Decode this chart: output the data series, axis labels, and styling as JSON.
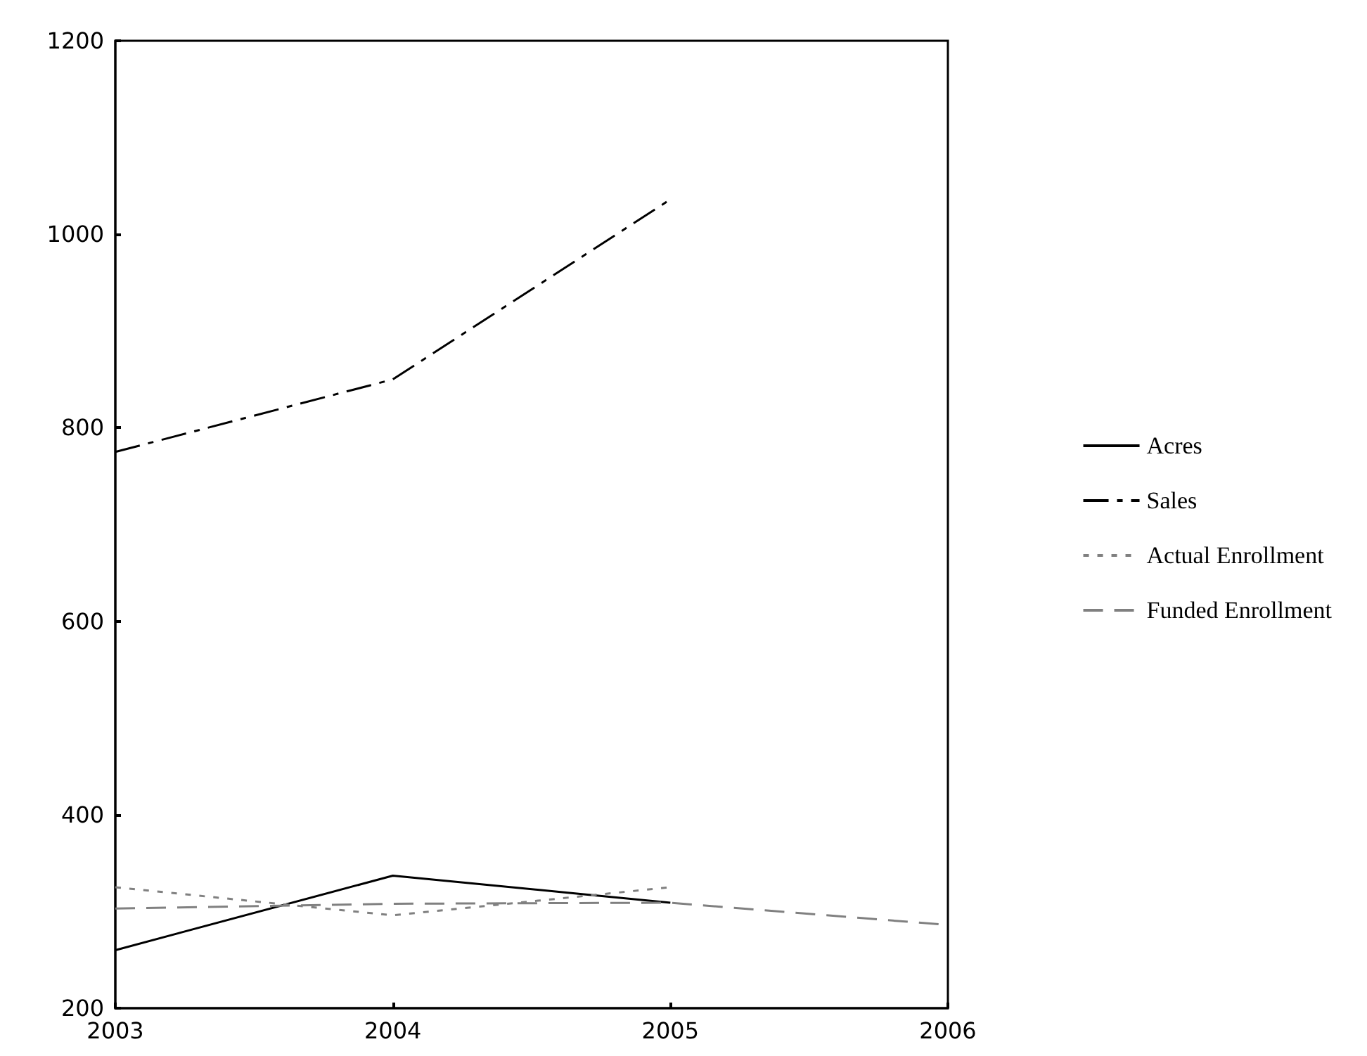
{
  "chart_data": {
    "type": "line",
    "x": [
      2003,
      2004,
      2005,
      2006
    ],
    "xlim": [
      2003,
      2006
    ],
    "xticks": [
      2003,
      2004,
      2005,
      2006
    ],
    "ylim": [
      200,
      1200
    ],
    "yticks": [
      200,
      400,
      600,
      800,
      1000,
      1200
    ],
    "series": [
      {
        "name": "Acres",
        "color": "#000000",
        "line_style": "solid",
        "values": [
          260,
          337,
          309,
          null
        ]
      },
      {
        "name": "Sales",
        "color": "#000000",
        "line_style": "dashdot",
        "values": [
          775,
          850,
          1036,
          null
        ]
      },
      {
        "name": "Actual Enrollment",
        "color": "#808080",
        "line_style": "dotted",
        "values": [
          325,
          296,
          325,
          null
        ]
      },
      {
        "name": "Funded Enrollment",
        "color": "#808080",
        "line_style": "dashed",
        "values": [
          303,
          308,
          309,
          286
        ]
      }
    ],
    "grid": false,
    "legend": "right",
    "marker": "none"
  }
}
